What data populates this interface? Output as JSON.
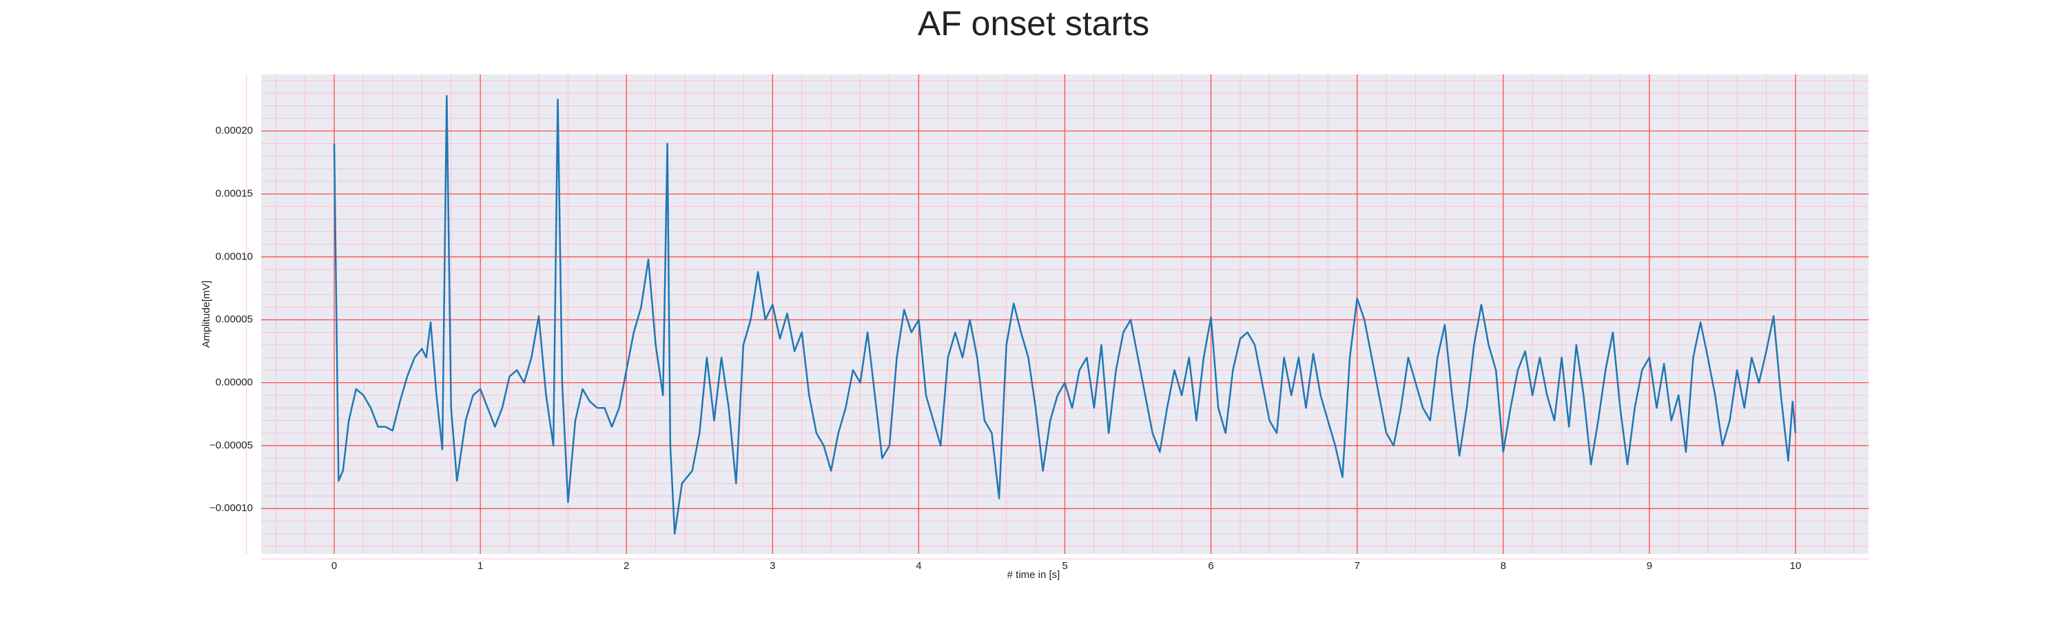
{
  "chart_data": {
    "type": "line",
    "title": "AF onset starts",
    "xlabel": "# time in [s]",
    "ylabel": "Amplitude[mV]",
    "color": "#1f77b4",
    "grid": true,
    "minor_grid": true,
    "major_grid_color": "#ff4040",
    "minor_grid_color": "#ffc0cb",
    "background": "#eaeaf2",
    "xlim": [
      -0.5,
      10.5
    ],
    "xticks": [
      0,
      1,
      2,
      3,
      4,
      5,
      6,
      7,
      8,
      9,
      10
    ],
    "ylim": [
      -0.000136,
      0.000245
    ],
    "yticks": [
      {
        "value": -0.0001,
        "label": "−0.00010"
      },
      {
        "value": -5e-05,
        "label": "−0.00005"
      },
      {
        "value": 0,
        "label": "0.00000"
      },
      {
        "value": 5e-05,
        "label": "0.00005"
      },
      {
        "value": 0.0001,
        "label": "0.00010"
      },
      {
        "value": 0.00015,
        "label": "0.00015"
      },
      {
        "value": 0.0002,
        "label": "0.00020"
      }
    ],
    "x": [
      0,
      0.03,
      0.06,
      0.1,
      0.15,
      0.2,
      0.25,
      0.3,
      0.35,
      0.4,
      0.45,
      0.5,
      0.55,
      0.6,
      0.63,
      0.66,
      0.7,
      0.74,
      0.77,
      0.8,
      0.84,
      0.9,
      0.95,
      1.0,
      1.05,
      1.1,
      1.15,
      1.2,
      1.25,
      1.3,
      1.35,
      1.4,
      1.45,
      1.5,
      1.53,
      1.56,
      1.6,
      1.65,
      1.7,
      1.75,
      1.8,
      1.85,
      1.9,
      1.95,
      2.0,
      2.05,
      2.1,
      2.15,
      2.2,
      2.25,
      2.28,
      2.3,
      2.33,
      2.38,
      2.45,
      2.5,
      2.55,
      2.6,
      2.65,
      2.7,
      2.75,
      2.8,
      2.85,
      2.9,
      2.95,
      3.0,
      3.05,
      3.1,
      3.15,
      3.2,
      3.25,
      3.3,
      3.35,
      3.4,
      3.45,
      3.5,
      3.55,
      3.6,
      3.65,
      3.7,
      3.75,
      3.8,
      3.85,
      3.9,
      3.95,
      4.0,
      4.05,
      4.1,
      4.15,
      4.2,
      4.25,
      4.3,
      4.35,
      4.4,
      4.45,
      4.5,
      4.55,
      4.6,
      4.65,
      4.7,
      4.75,
      4.8,
      4.85,
      4.9,
      4.95,
      5.0,
      5.05,
      5.1,
      5.15,
      5.2,
      5.25,
      5.3,
      5.35,
      5.4,
      5.45,
      5.5,
      5.55,
      5.6,
      5.65,
      5.7,
      5.75,
      5.8,
      5.85,
      5.9,
      5.95,
      6.0,
      6.05,
      6.1,
      6.15,
      6.2,
      6.25,
      6.3,
      6.35,
      6.4,
      6.45,
      6.5,
      6.55,
      6.6,
      6.65,
      6.7,
      6.75,
      6.8,
      6.85,
      6.9,
      6.95,
      7.0,
      7.05,
      7.1,
      7.15,
      7.2,
      7.25,
      7.3,
      7.35,
      7.4,
      7.45,
      7.5,
      7.55,
      7.6,
      7.65,
      7.7,
      7.75,
      7.8,
      7.85,
      7.9,
      7.95,
      8.0,
      8.05,
      8.1,
      8.15,
      8.2,
      8.25,
      8.3,
      8.35,
      8.4,
      8.45,
      8.5,
      8.55,
      8.6,
      8.65,
      8.7,
      8.75,
      8.8,
      8.85,
      8.9,
      8.95,
      9.0,
      9.05,
      9.1,
      9.15,
      9.2,
      9.25,
      9.3,
      9.35,
      9.4,
      9.45,
      9.5,
      9.55,
      9.6,
      9.65,
      9.7,
      9.75,
      9.8,
      9.85,
      9.9,
      9.95,
      9.98,
      10.0
    ],
    "values": [
      0.00019,
      -7.8e-05,
      -7e-05,
      -3e-05,
      -5e-06,
      -1e-05,
      -2e-05,
      -3.5e-05,
      -3.5e-05,
      -3.8e-05,
      -1.5e-05,
      5e-06,
      2e-05,
      2.7e-05,
      2e-05,
      4.8e-05,
      -1e-05,
      -5.3e-05,
      0.000228,
      -2e-05,
      -7.8e-05,
      -3e-05,
      -1e-05,
      -5e-06,
      -2e-05,
      -3.5e-05,
      -2e-05,
      5e-06,
      1e-05,
      0,
      2e-05,
      5.3e-05,
      -1e-05,
      -5e-05,
      0.000225,
      0,
      -9.5e-05,
      -3e-05,
      -5e-06,
      -1.5e-05,
      -2e-05,
      -2e-05,
      -3.5e-05,
      -2e-05,
      1e-05,
      4e-05,
      6e-05,
      9.8e-05,
      3e-05,
      -1e-05,
      0.00019,
      -5e-05,
      -0.00012,
      -8e-05,
      -7e-05,
      -4e-05,
      2e-05,
      -3e-05,
      2e-05,
      -2e-05,
      -8e-05,
      3e-05,
      5e-05,
      8.8e-05,
      5e-05,
      6.2e-05,
      3.5e-05,
      5.5e-05,
      2.5e-05,
      4e-05,
      -1e-05,
      -4e-05,
      -5e-05,
      -7e-05,
      -4e-05,
      -2e-05,
      1e-05,
      0,
      4e-05,
      -1e-05,
      -6e-05,
      -5e-05,
      2e-05,
      5.8e-05,
      4e-05,
      5e-05,
      -1e-05,
      -3e-05,
      -5e-05,
      2e-05,
      4e-05,
      2e-05,
      5e-05,
      2e-05,
      -3e-05,
      -4e-05,
      -9.2e-05,
      3e-05,
      6.3e-05,
      4e-05,
      2e-05,
      -2e-05,
      -7e-05,
      -3e-05,
      -1e-05,
      0,
      -2e-05,
      1e-05,
      2e-05,
      -2e-05,
      3e-05,
      -4e-05,
      1e-05,
      4e-05,
      5e-05,
      2e-05,
      -1e-05,
      -4e-05,
      -5.5e-05,
      -2e-05,
      1e-05,
      -1e-05,
      2e-05,
      -3e-05,
      2e-05,
      5.2e-05,
      -2e-05,
      -4e-05,
      1e-05,
      3.5e-05,
      4e-05,
      3e-05,
      0,
      -3e-05,
      -4e-05,
      2e-05,
      -1e-05,
      2e-05,
      -2e-05,
      2.3e-05,
      -1e-05,
      -3e-05,
      -5e-05,
      -7.5e-05,
      2e-05,
      6.7e-05,
      5e-05,
      2e-05,
      -1e-05,
      -4e-05,
      -5e-05,
      -2e-05,
      2e-05,
      0,
      -2e-05,
      -3e-05,
      2e-05,
      4.6e-05,
      -1e-05,
      -5.8e-05,
      -2e-05,
      3e-05,
      6.2e-05,
      3e-05,
      1e-05,
      -5.5e-05,
      -2e-05,
      1e-05,
      2.5e-05,
      -1e-05,
      2e-05,
      -1e-05,
      -3e-05,
      2e-05,
      -3.5e-05,
      3e-05,
      -1e-05,
      -6.5e-05,
      -3e-05,
      1e-05,
      4e-05,
      -2e-05,
      -6.5e-05,
      -2e-05,
      1e-05,
      2e-05,
      -2e-05,
      1.5e-05,
      -3e-05,
      -1e-05,
      -5.5e-05,
      2e-05,
      4.8e-05,
      2e-05,
      -1e-05,
      -5e-05,
      -3e-05,
      1e-05,
      -2e-05,
      2e-05,
      0,
      2.5e-05,
      5.3e-05,
      -1e-05,
      -6.2e-05,
      -1.5e-05,
      -4e-05
    ]
  }
}
